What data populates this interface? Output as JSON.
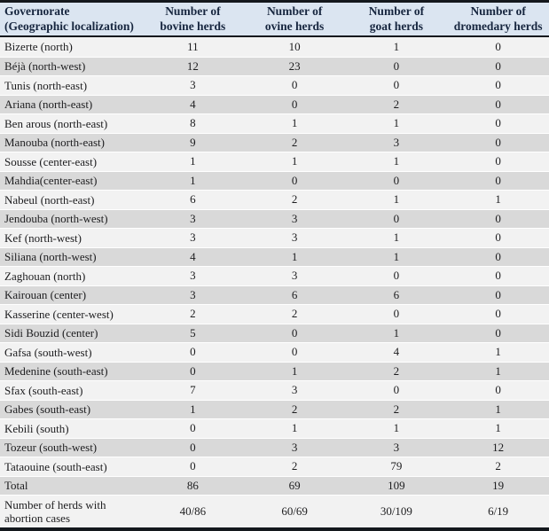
{
  "table": {
    "columns": [
      {
        "line1": "Governorate",
        "line2": "(Geographic localization)"
      },
      {
        "line1": "Number of",
        "line2": "bovine herds"
      },
      {
        "line1": "Number of",
        "line2": "ovine herds"
      },
      {
        "line1": "Number of",
        "line2": "goat herds"
      },
      {
        "line1": "Number of",
        "line2": "dromedary herds"
      }
    ],
    "rows": [
      {
        "kind": "data",
        "governorate": "Bizerte (north)",
        "values": [
          "11",
          "10",
          "1",
          "0"
        ]
      },
      {
        "kind": "data",
        "governorate": "Béjà (north-west)",
        "values": [
          "12",
          "23",
          "0",
          "0"
        ]
      },
      {
        "kind": "data",
        "governorate": "Tunis (north-east)",
        "values": [
          "3",
          "0",
          "0",
          "0"
        ]
      },
      {
        "kind": "data",
        "governorate": "Ariana (north-east)",
        "values": [
          "4",
          "0",
          "2",
          "0"
        ]
      },
      {
        "kind": "data",
        "governorate": "Ben arous (north-east)",
        "values": [
          "8",
          "1",
          "1",
          "0"
        ]
      },
      {
        "kind": "data",
        "governorate": "Manouba (north-east)",
        "values": [
          "9",
          "2",
          "3",
          "0"
        ]
      },
      {
        "kind": "data",
        "governorate": "Sousse (center-east)",
        "values": [
          "1",
          "1",
          "1",
          "0"
        ]
      },
      {
        "kind": "data",
        "governorate": "Mahdia(center-east)",
        "values": [
          "1",
          "0",
          "0",
          "0"
        ]
      },
      {
        "kind": "data",
        "governorate": "Nabeul (north-east)",
        "values": [
          "6",
          "2",
          "1",
          "1"
        ]
      },
      {
        "kind": "data",
        "governorate": "Jendouba (north-west)",
        "values": [
          "3",
          "3",
          "0",
          "0"
        ]
      },
      {
        "kind": "data",
        "governorate": "Kef (north-west)",
        "values": [
          "3",
          "3",
          "1",
          "0"
        ]
      },
      {
        "kind": "data",
        "governorate": "Siliana (north-west)",
        "values": [
          "4",
          "1",
          "1",
          "0"
        ]
      },
      {
        "kind": "data",
        "governorate": "Zaghouan (north)",
        "values": [
          "3",
          "3",
          "0",
          "0"
        ]
      },
      {
        "kind": "data",
        "governorate": "Kairouan (center)",
        "values": [
          "3",
          "6",
          "6",
          "0"
        ]
      },
      {
        "kind": "data",
        "governorate": "Kasserine (center-west)",
        "values": [
          "2",
          "2",
          "0",
          "0"
        ]
      },
      {
        "kind": "data",
        "governorate": "Sidi Bouzid (center)",
        "values": [
          "5",
          "0",
          "1",
          "0"
        ]
      },
      {
        "kind": "data",
        "governorate": "Gafsa (south-west)",
        "values": [
          "0",
          "0",
          "4",
          "1"
        ]
      },
      {
        "kind": "data",
        "governorate": "Medenine (south-east)",
        "values": [
          "0",
          "1",
          "2",
          "1"
        ]
      },
      {
        "kind": "data",
        "governorate": "Sfax (south-east)",
        "values": [
          "7",
          "3",
          "0",
          "0"
        ]
      },
      {
        "kind": "data",
        "governorate": "Gabes (south-east)",
        "values": [
          "1",
          "2",
          "2",
          "1"
        ]
      },
      {
        "kind": "data",
        "governorate": "Kebili (south)",
        "values": [
          "0",
          "1",
          "1",
          "1"
        ]
      },
      {
        "kind": "data",
        "governorate": "Tozeur (south-west)",
        "values": [
          "0",
          "3",
          "3",
          "12"
        ]
      },
      {
        "kind": "data",
        "governorate": "Tataouine (south-east)",
        "values": [
          "0",
          "2",
          "79",
          "2"
        ]
      },
      {
        "kind": "total",
        "governorate": "Total",
        "values": [
          "86",
          "69",
          "109",
          "19"
        ]
      },
      {
        "kind": "summary",
        "governorate": "Number of herds with abortion cases",
        "values": [
          "40/86",
          "60/69",
          "30/109",
          "6/19"
        ]
      }
    ],
    "colors": {
      "header_bg": "#dbe5f1",
      "header_text": "#17263f",
      "row_light": "#f2f2f2",
      "row_dark": "#d9d9d9",
      "border": "#14181d",
      "body_text": "#1d1d1f",
      "separator": "#ffffff"
    }
  }
}
